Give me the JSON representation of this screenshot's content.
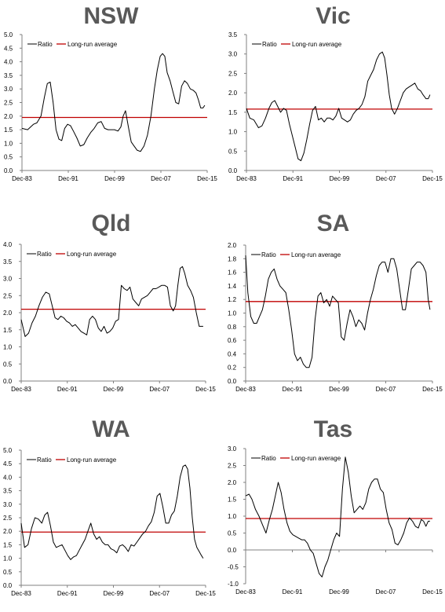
{
  "colors": {
    "ratio": "#000000",
    "average": "#c00000",
    "axis": "#808080",
    "title": "#595959"
  },
  "chart_data": [
    {
      "type": "line",
      "title": "NSW",
      "legend": [
        "Ratio",
        "Long-run average"
      ],
      "legend_position": "top-left",
      "grid": false,
      "xtick_labels": [
        "Dec-83",
        "Dec-91",
        "Dec-99",
        "Dec-07",
        "Dec-15"
      ],
      "xlim": [
        1983.92,
        2015.92
      ],
      "ylim": [
        0,
        5
      ],
      "yticks": [
        "0.0",
        "0.5",
        "1.0",
        "1.5",
        "2.0",
        "2.5",
        "3.0",
        "3.5",
        "4.0",
        "4.5",
        "5.0"
      ],
      "average": 1.95,
      "series": [
        {
          "name": "Ratio",
          "x": [
            1983.92,
            1984.9,
            1985.9,
            1986.5,
            1987.2,
            1987.8,
            1988.3,
            1988.8,
            1989.3,
            1989.8,
            1990.3,
            1990.8,
            1991.3,
            1991.8,
            1992.3,
            1992.8,
            1993.4,
            1994.0,
            1994.6,
            1995.2,
            1995.8,
            1996.4,
            1997.0,
            1997.6,
            1998.2,
            1998.8,
            1999.4,
            1999.9,
            2000.5,
            2001.0,
            2001.4,
            2001.8,
            2002.3,
            2002.8,
            2003.3,
            2003.8,
            2004.4,
            2005.0,
            2005.6,
            2006.2,
            2006.8,
            2007.3,
            2007.8,
            2008.2,
            2008.6,
            2009.0,
            2009.5,
            2010.0,
            2010.5,
            2011.0,
            2011.5,
            2012.0,
            2012.5,
            2013.0,
            2013.5,
            2014.0,
            2014.4,
            2014.8,
            2015.2,
            2015.5
          ],
          "values": [
            1.55,
            1.5,
            1.7,
            1.75,
            2.0,
            2.7,
            3.2,
            3.25,
            2.5,
            1.5,
            1.15,
            1.1,
            1.55,
            1.7,
            1.65,
            1.45,
            1.2,
            0.9,
            0.95,
            1.2,
            1.4,
            1.55,
            1.75,
            1.8,
            1.55,
            1.5,
            1.5,
            1.5,
            1.45,
            1.6,
            2.0,
            2.2,
            1.6,
            1.05,
            0.9,
            0.75,
            0.7,
            0.9,
            1.3,
            2.0,
            3.0,
            3.7,
            4.2,
            4.3,
            4.2,
            3.6,
            3.3,
            2.9,
            2.5,
            2.45,
            3.1,
            3.3,
            3.2,
            3.0,
            2.95,
            2.85,
            2.6,
            2.3,
            2.3,
            2.4
          ]
        }
      ]
    },
    {
      "type": "line",
      "title": "Vic",
      "legend": [
        "Ratio",
        "Long-run average"
      ],
      "legend_position": "top-left",
      "grid": false,
      "xtick_labels": [
        "Dec-83",
        "Dec-91",
        "Dec-99",
        "Dec-07",
        "Dec-15"
      ],
      "xlim": [
        1983.92,
        2015.92
      ],
      "ylim": [
        0,
        3.5
      ],
      "yticks": [
        "0.0",
        "0.5",
        "1.0",
        "1.5",
        "2.0",
        "2.5",
        "3.0",
        "3.5"
      ],
      "average": 1.58,
      "series": [
        {
          "name": "Ratio",
          "x": [
            1983.92,
            1984.5,
            1985.2,
            1986.0,
            1986.6,
            1987.2,
            1987.8,
            1988.3,
            1988.8,
            1989.3,
            1989.8,
            1990.3,
            1990.8,
            1991.3,
            1991.8,
            1992.3,
            1992.8,
            1993.3,
            1993.8,
            1994.3,
            1994.8,
            1995.3,
            1995.8,
            1996.3,
            1996.8,
            1997.3,
            1997.8,
            1998.3,
            1998.8,
            1999.3,
            1999.8,
            2000.3,
            2000.8,
            2001.3,
            2001.8,
            2002.3,
            2002.8,
            2003.3,
            2003.8,
            2004.3,
            2004.8,
            2005.3,
            2005.8,
            2006.3,
            2006.8,
            2007.3,
            2007.7,
            2008.1,
            2008.5,
            2008.9,
            2009.4,
            2009.9,
            2010.4,
            2010.9,
            2011.4,
            2011.9,
            2012.4,
            2012.9,
            2013.4,
            2013.9,
            2014.3,
            2014.8,
            2015.2,
            2015.5
          ],
          "values": [
            1.6,
            1.35,
            1.3,
            1.1,
            1.15,
            1.35,
            1.6,
            1.75,
            1.8,
            1.65,
            1.5,
            1.6,
            1.55,
            1.2,
            0.9,
            0.6,
            0.3,
            0.25,
            0.45,
            0.8,
            1.2,
            1.55,
            1.65,
            1.3,
            1.35,
            1.25,
            1.35,
            1.35,
            1.3,
            1.4,
            1.6,
            1.35,
            1.3,
            1.25,
            1.3,
            1.45,
            1.55,
            1.6,
            1.7,
            1.9,
            2.3,
            2.45,
            2.6,
            2.85,
            3.0,
            3.05,
            2.9,
            2.45,
            1.95,
            1.6,
            1.45,
            1.6,
            1.8,
            2.0,
            2.1,
            2.15,
            2.2,
            2.25,
            2.1,
            2.05,
            1.95,
            1.85,
            1.85,
            1.95
          ]
        }
      ]
    },
    {
      "type": "line",
      "title": "Qld",
      "legend": [
        "Ratio",
        "Long-run average"
      ],
      "legend_position": "top-left",
      "grid": false,
      "xtick_labels": [
        "Dec-83",
        "Dec-91",
        "Dec-99",
        "Dec-07",
        "Dec-15"
      ],
      "xlim": [
        1983.92,
        2015.92
      ],
      "ylim": [
        0,
        4
      ],
      "yticks": [
        "0.0",
        "0.5",
        "1.0",
        "1.5",
        "2.0",
        "2.5",
        "3.0",
        "3.5",
        "4.0"
      ],
      "average": 2.1,
      "series": [
        {
          "name": "Ratio",
          "x": [
            1983.92,
            1984.6,
            1985.2,
            1985.8,
            1986.4,
            1987.0,
            1987.6,
            1988.2,
            1988.8,
            1989.3,
            1989.8,
            1990.3,
            1990.8,
            1991.3,
            1991.8,
            1992.3,
            1992.8,
            1993.3,
            1993.8,
            1994.3,
            1994.8,
            1995.3,
            1995.8,
            1996.3,
            1996.8,
            1997.3,
            1997.8,
            1998.3,
            1998.8,
            1999.3,
            1999.8,
            2000.3,
            2000.8,
            2001.3,
            2001.8,
            2002.3,
            2002.8,
            2003.3,
            2003.8,
            2004.3,
            2004.8,
            2005.3,
            2005.8,
            2006.3,
            2006.8,
            2007.3,
            2007.8,
            2008.3,
            2008.8,
            2009.3,
            2009.8,
            2010.3,
            2010.7,
            2011.1,
            2011.5,
            2011.9,
            2012.3,
            2012.8,
            2013.3,
            2013.8,
            2014.3,
            2014.8,
            2015.2,
            2015.5
          ],
          "values": [
            1.8,
            1.3,
            1.4,
            1.7,
            1.9,
            2.2,
            2.45,
            2.6,
            2.55,
            2.2,
            1.85,
            1.8,
            1.9,
            1.85,
            1.75,
            1.7,
            1.6,
            1.65,
            1.55,
            1.45,
            1.4,
            1.35,
            1.8,
            1.9,
            1.8,
            1.55,
            1.45,
            1.6,
            1.4,
            1.45,
            1.55,
            1.75,
            1.8,
            2.8,
            2.7,
            2.65,
            2.75,
            2.4,
            2.3,
            2.2,
            2.4,
            2.45,
            2.5,
            2.6,
            2.7,
            2.7,
            2.75,
            2.8,
            2.8,
            2.75,
            2.2,
            2.05,
            2.2,
            2.8,
            3.3,
            3.35,
            3.15,
            2.8,
            2.65,
            2.45,
            2.0,
            1.6,
            1.6,
            1.6
          ]
        }
      ]
    },
    {
      "type": "line",
      "title": "SA",
      "legend": [
        "Ratio",
        "Long-run average"
      ],
      "legend_position": "top-left",
      "grid": false,
      "xtick_labels": [
        "Dec-83",
        "Dec-91",
        "Dec-99",
        "Dec-07",
        "Dec-15"
      ],
      "xlim": [
        1983.92,
        2015.92
      ],
      "ylim": [
        0,
        2
      ],
      "yticks": [
        "0.0",
        "0.2",
        "0.4",
        "0.6",
        "0.8",
        "1.0",
        "1.2",
        "1.4",
        "1.6",
        "1.8",
        "2.0"
      ],
      "average": 1.17,
      "series": [
        {
          "name": "Ratio",
          "x": [
            1983.92,
            1984.3,
            1984.8,
            1985.3,
            1985.8,
            1986.3,
            1986.8,
            1987.3,
            1987.8,
            1988.3,
            1988.8,
            1989.3,
            1989.8,
            1990.3,
            1990.8,
            1991.3,
            1991.8,
            1992.3,
            1992.8,
            1993.3,
            1993.8,
            1994.3,
            1994.8,
            1995.3,
            1995.8,
            1996.3,
            1996.8,
            1997.3,
            1997.8,
            1998.3,
            1998.8,
            1999.3,
            1999.8,
            2000.3,
            2000.8,
            2001.3,
            2001.8,
            2002.3,
            2002.8,
            2003.3,
            2003.8,
            2004.3,
            2004.8,
            2005.3,
            2005.8,
            2006.3,
            2006.8,
            2007.3,
            2007.8,
            2008.3,
            2008.8,
            2009.3,
            2009.8,
            2010.3,
            2010.8,
            2011.3,
            2011.8,
            2012.3,
            2012.8,
            2013.3,
            2013.8,
            2014.3,
            2014.8,
            2015.2,
            2015.5
          ],
          "values": [
            1.85,
            1.3,
            0.95,
            0.85,
            0.85,
            0.95,
            1.05,
            1.25,
            1.5,
            1.6,
            1.65,
            1.5,
            1.4,
            1.35,
            1.3,
            1.05,
            0.75,
            0.4,
            0.3,
            0.35,
            0.25,
            0.2,
            0.2,
            0.35,
            0.9,
            1.25,
            1.3,
            1.15,
            1.2,
            1.1,
            1.25,
            1.2,
            1.15,
            0.65,
            0.6,
            0.85,
            1.05,
            0.95,
            0.8,
            0.9,
            0.85,
            0.75,
            1.0,
            1.2,
            1.35,
            1.55,
            1.7,
            1.75,
            1.75,
            1.6,
            1.8,
            1.8,
            1.65,
            1.35,
            1.05,
            1.05,
            1.35,
            1.65,
            1.7,
            1.75,
            1.75,
            1.7,
            1.6,
            1.2,
            1.05
          ]
        }
      ]
    },
    {
      "type": "line",
      "title": "WA",
      "legend": [
        "Ratio",
        "Long-run average"
      ],
      "legend_position": "top-left",
      "grid": false,
      "xtick_labels": [
        "Dec-83",
        "Dec-91",
        "Dec-99",
        "Dec-07",
        "Dec-15"
      ],
      "xlim": [
        1983.92,
        2015.92
      ],
      "ylim": [
        0,
        5
      ],
      "yticks": [
        "0.0",
        "0.5",
        "1.0",
        "1.5",
        "2.0",
        "2.5",
        "3.0",
        "3.5",
        "4.0",
        "4.5",
        "5.0"
      ],
      "average": 1.97,
      "series": [
        {
          "name": "Ratio",
          "x": [
            1983.92,
            1984.5,
            1985.1,
            1985.7,
            1986.3,
            1986.9,
            1987.5,
            1988.0,
            1988.5,
            1989.0,
            1989.5,
            1990.0,
            1990.5,
            1991.0,
            1991.5,
            1992.0,
            1992.5,
            1993.0,
            1993.5,
            1994.0,
            1994.5,
            1995.0,
            1995.5,
            1996.0,
            1996.5,
            1997.0,
            1997.5,
            1998.0,
            1998.5,
            1999.0,
            1999.5,
            2000.0,
            2000.5,
            2001.0,
            2001.5,
            2002.0,
            2002.5,
            2003.0,
            2003.5,
            2004.0,
            2004.5,
            2005.0,
            2005.5,
            2006.0,
            2006.5,
            2007.0,
            2007.5,
            2008.0,
            2008.5,
            2009.0,
            2009.5,
            2010.0,
            2010.5,
            2011.0,
            2011.5,
            2012.0,
            2012.4,
            2012.8,
            2013.2,
            2013.6,
            2014.0,
            2014.4,
            2014.8,
            2015.2,
            2015.5
          ],
          "values": [
            2.3,
            1.4,
            1.5,
            2.1,
            2.5,
            2.45,
            2.3,
            2.6,
            2.7,
            2.2,
            1.6,
            1.4,
            1.45,
            1.5,
            1.3,
            1.1,
            0.95,
            1.05,
            1.1,
            1.3,
            1.5,
            1.7,
            2.0,
            2.3,
            1.9,
            1.7,
            1.8,
            1.6,
            1.5,
            1.5,
            1.35,
            1.3,
            1.2,
            1.45,
            1.5,
            1.4,
            1.25,
            1.5,
            1.45,
            1.6,
            1.75,
            1.9,
            2.0,
            2.2,
            2.35,
            2.7,
            3.3,
            3.4,
            2.9,
            2.3,
            2.3,
            2.6,
            2.75,
            3.3,
            4.0,
            4.4,
            4.45,
            4.3,
            3.6,
            2.5,
            1.7,
            1.4,
            1.25,
            1.1,
            1.0
          ]
        }
      ]
    },
    {
      "type": "line",
      "title": "Tas",
      "legend": [
        "Ratio",
        "Long-run average"
      ],
      "legend_position": "top-left",
      "grid": false,
      "xtick_labels": [
        "Dec-83",
        "Dec-91",
        "Dec-99",
        "Dec-07",
        "Dec-15"
      ],
      "xlim": [
        1983.92,
        2015.92
      ],
      "ylim": [
        -1,
        3
      ],
      "yticks": [
        "-1.0",
        "-0.5",
        "0.0",
        "0.5",
        "1.0",
        "1.5",
        "2.0",
        "2.5",
        "3.0"
      ],
      "average": 0.93,
      "series": [
        {
          "name": "Ratio",
          "x": [
            1983.92,
            1984.5,
            1985.0,
            1985.6,
            1986.2,
            1986.8,
            1987.4,
            1988.0,
            1988.5,
            1989.0,
            1989.5,
            1990.0,
            1990.5,
            1991.0,
            1991.5,
            1992.0,
            1992.5,
            1993.0,
            1993.5,
            1994.0,
            1994.5,
            1995.0,
            1995.5,
            1996.0,
            1996.5,
            1997.0,
            1997.5,
            1998.0,
            1998.5,
            1999.0,
            1999.5,
            2000.0,
            2000.5,
            2001.0,
            2001.5,
            2002.0,
            2002.5,
            2003.0,
            2003.5,
            2004.0,
            2004.5,
            2005.0,
            2005.5,
            2006.0,
            2006.5,
            2007.0,
            2007.5,
            2008.0,
            2008.5,
            2009.0,
            2009.5,
            2010.0,
            2010.5,
            2011.0,
            2011.5,
            2012.0,
            2012.5,
            2013.0,
            2013.5,
            2014.0,
            2014.4,
            2014.8,
            2015.2,
            2015.5
          ],
          "values": [
            1.6,
            1.65,
            1.5,
            1.2,
            1.0,
            0.75,
            0.5,
            0.9,
            1.2,
            1.6,
            2.0,
            1.7,
            1.2,
            0.8,
            0.55,
            0.45,
            0.4,
            0.35,
            0.3,
            0.3,
            0.2,
            0.0,
            -0.1,
            -0.4,
            -0.7,
            -0.8,
            -0.5,
            -0.3,
            0.0,
            0.3,
            0.5,
            0.4,
            1.8,
            2.75,
            2.3,
            1.6,
            1.1,
            1.2,
            1.3,
            1.2,
            1.4,
            1.8,
            2.0,
            2.1,
            2.1,
            1.8,
            1.7,
            1.2,
            0.8,
            0.6,
            0.2,
            0.15,
            0.3,
            0.5,
            0.8,
            0.95,
            0.85,
            0.7,
            0.65,
            0.9,
            0.85,
            0.7,
            0.85,
            0.85
          ]
        }
      ]
    }
  ]
}
